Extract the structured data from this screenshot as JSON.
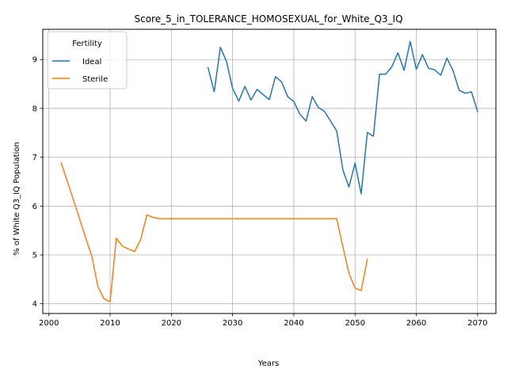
{
  "chart_data": {
    "type": "line",
    "title": "Score_5_in_TOLERANCE_HOMOSEXUAL_for_White_Q3_IQ",
    "xlabel": "Years",
    "ylabel": "% of White Q3_IQ Population",
    "xlim": [
      1999,
      2073
    ],
    "ylim": [
      3.8,
      9.62
    ],
    "xticks": [
      2000,
      2010,
      2020,
      2030,
      2040,
      2050,
      2060,
      2070
    ],
    "yticks": [
      4,
      5,
      6,
      7,
      8,
      9
    ],
    "grid": true,
    "legend": {
      "title": "Fertility",
      "position": "upper left"
    },
    "series": [
      {
        "name": "Ideal",
        "color": "#1f77b4",
        "x": [
          2026,
          2027,
          2028,
          2029,
          2030,
          2031,
          2032,
          2033,
          2034,
          2035,
          2036,
          2037,
          2038,
          2039,
          2040,
          2041,
          2042,
          2043,
          2044,
          2045,
          2046,
          2047,
          2048,
          2049,
          2050,
          2051,
          2052,
          2053,
          2054,
          2055,
          2056,
          2057,
          2058,
          2059,
          2060,
          2061,
          2062,
          2063,
          2064,
          2065,
          2066,
          2067,
          2068,
          2069,
          2070
        ],
        "values": [
          8.83,
          8.34,
          9.25,
          8.96,
          8.41,
          8.15,
          8.45,
          8.17,
          8.39,
          8.28,
          8.18,
          8.65,
          8.54,
          8.24,
          8.14,
          7.88,
          7.74,
          8.24,
          8.02,
          7.94,
          7.74,
          7.54,
          6.74,
          6.39,
          6.88,
          6.25,
          7.51,
          7.43,
          8.7,
          8.7,
          8.85,
          9.14,
          8.78,
          9.37,
          8.8,
          9.1,
          8.82,
          8.79,
          8.68,
          9.03,
          8.77,
          8.37,
          8.31,
          8.34,
          7.94
        ]
      },
      {
        "name": "Sterile",
        "color": "#ff7f0e",
        "x": [
          2002,
          2003,
          2004,
          2005,
          2006,
          2007,
          2008,
          2009,
          2010,
          2011,
          2012,
          2013,
          2014,
          2015,
          2016,
          2017,
          2018,
          2019,
          2020,
          2021,
          2022,
          2023,
          2024,
          2025,
          2026,
          2027,
          2028,
          2029,
          2030,
          2031,
          2032,
          2033,
          2034,
          2035,
          2036,
          2037,
          2038,
          2039,
          2040,
          2041,
          2042,
          2043,
          2044,
          2045,
          2046,
          2047,
          2048,
          2049,
          2050,
          2051,
          2052
        ],
        "values": [
          6.88,
          6.51,
          6.13,
          5.74,
          5.35,
          4.98,
          4.35,
          4.1,
          4.04,
          5.34,
          5.18,
          5.12,
          5.07,
          5.32,
          5.82,
          5.77,
          5.74,
          5.74,
          5.74,
          5.74,
          5.74,
          5.74,
          5.74,
          5.74,
          5.74,
          5.74,
          5.74,
          5.74,
          5.74,
          5.74,
          5.74,
          5.74,
          5.74,
          5.74,
          5.74,
          5.74,
          5.74,
          5.74,
          5.74,
          5.74,
          5.74,
          5.74,
          5.74,
          5.74,
          5.74,
          5.74,
          5.17,
          4.62,
          4.32,
          4.27,
          4.91
        ]
      }
    ]
  }
}
